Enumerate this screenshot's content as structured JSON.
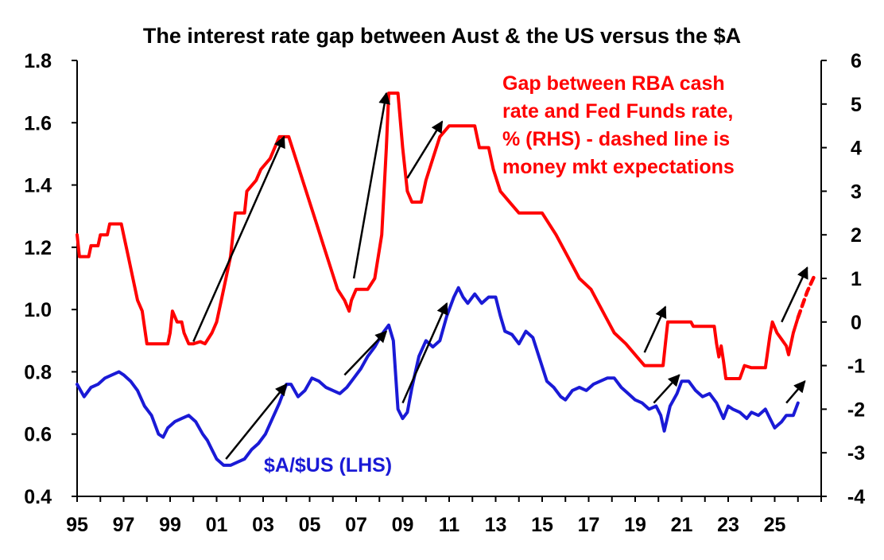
{
  "chart_data": {
    "type": "line",
    "title": "The interest rate gap between Aust & the US versus the $A",
    "x_labels": [
      "95",
      "97",
      "99",
      "01",
      "03",
      "05",
      "07",
      "09",
      "11",
      "13",
      "15",
      "17",
      "19",
      "21",
      "23",
      "25"
    ],
    "x_range": [
      1995,
      2027
    ],
    "y_left": {
      "range": [
        0.4,
        1.8
      ],
      "ticks": [
        "0.4",
        "0.6",
        "0.8",
        "1.0",
        "1.2",
        "1.4",
        "1.6",
        "1.8"
      ]
    },
    "y_right": {
      "range": [
        -4,
        6
      ],
      "ticks": [
        "-4",
        "-3",
        "-2",
        "-1",
        "0",
        "1",
        "2",
        "3",
        "4",
        "5",
        "6"
      ]
    },
    "annotations": {
      "gap_label": [
        "Gap between RBA cash",
        "rate and Fed Funds rate,",
        "% (RHS) - dashed line is",
        "money mkt expectations"
      ],
      "aud_label": "$A/$US (LHS)"
    },
    "series": [
      {
        "name": "Gap between RBA cash rate and Fed Funds rate, % (RHS)",
        "axis": "right",
        "color": "#ff0000",
        "style": "solid",
        "points": [
          [
            1995.0,
            2.0
          ],
          [
            1995.1,
            1.5
          ],
          [
            1995.5,
            1.5
          ],
          [
            1995.6,
            1.75
          ],
          [
            1995.9,
            1.75
          ],
          [
            1996.0,
            2.0
          ],
          [
            1996.3,
            2.0
          ],
          [
            1996.4,
            2.25
          ],
          [
            1996.9,
            2.25
          ],
          [
            1997.0,
            2.0
          ],
          [
            1997.2,
            1.5
          ],
          [
            1997.4,
            1.0
          ],
          [
            1997.6,
            0.5
          ],
          [
            1997.8,
            0.25
          ],
          [
            1998.0,
            -0.5
          ],
          [
            1998.5,
            -0.5
          ],
          [
            1998.9,
            -0.5
          ],
          [
            1999.0,
            -0.25
          ],
          [
            1999.1,
            0.25
          ],
          [
            1999.3,
            0.0
          ],
          [
            1999.5,
            0.0
          ],
          [
            1999.6,
            -0.25
          ],
          [
            1999.8,
            -0.5
          ],
          [
            2000.0,
            -0.5
          ],
          [
            2000.3,
            -0.45
          ],
          [
            2000.5,
            -0.5
          ],
          [
            2000.8,
            -0.25
          ],
          [
            2001.0,
            0.0
          ],
          [
            2001.2,
            0.5
          ],
          [
            2001.4,
            1.0
          ],
          [
            2001.6,
            1.5
          ],
          [
            2001.8,
            2.5
          ],
          [
            2002.2,
            2.5
          ],
          [
            2002.3,
            3.0
          ],
          [
            2002.7,
            3.25
          ],
          [
            2002.9,
            3.5
          ],
          [
            2003.3,
            3.75
          ],
          [
            2003.5,
            4.0
          ],
          [
            2003.7,
            4.25
          ],
          [
            2004.1,
            4.25
          ],
          [
            2004.4,
            3.75
          ],
          [
            2004.7,
            3.25
          ],
          [
            2005.0,
            2.75
          ],
          [
            2005.3,
            2.25
          ],
          [
            2005.6,
            1.75
          ],
          [
            2005.9,
            1.25
          ],
          [
            2006.2,
            0.75
          ],
          [
            2006.5,
            0.5
          ],
          [
            2006.7,
            0.25
          ],
          [
            2006.8,
            0.5
          ],
          [
            2007.0,
            0.75
          ],
          [
            2007.5,
            0.75
          ],
          [
            2007.8,
            1.0
          ],
          [
            2008.1,
            2.0
          ],
          [
            2008.3,
            4.0
          ],
          [
            2008.4,
            5.25
          ],
          [
            2008.8,
            5.25
          ],
          [
            2009.0,
            4.0
          ],
          [
            2009.2,
            3.0
          ],
          [
            2009.4,
            2.75
          ],
          [
            2009.8,
            2.75
          ],
          [
            2010.0,
            3.25
          ],
          [
            2010.3,
            3.75
          ],
          [
            2010.6,
            4.25
          ],
          [
            2011.0,
            4.5
          ],
          [
            2011.5,
            4.5
          ],
          [
            2012.1,
            4.5
          ],
          [
            2012.3,
            4.0
          ],
          [
            2012.7,
            4.0
          ],
          [
            2012.9,
            3.5
          ],
          [
            2013.2,
            3.0
          ],
          [
            2013.6,
            2.75
          ],
          [
            2014.0,
            2.5
          ],
          [
            2014.5,
            2.5
          ],
          [
            2015.0,
            2.5
          ],
          [
            2015.6,
            2.0
          ],
          [
            2016.1,
            1.5
          ],
          [
            2016.6,
            1.0
          ],
          [
            2017.1,
            0.75
          ],
          [
            2017.6,
            0.25
          ],
          [
            2018.1,
            -0.25
          ],
          [
            2018.6,
            -0.5
          ],
          [
            2019.0,
            -0.75
          ],
          [
            2019.4,
            -1.0
          ],
          [
            2019.7,
            -1.0
          ],
          [
            2020.0,
            -1.0
          ],
          [
            2020.2,
            -1.0
          ],
          [
            2020.3,
            -0.5
          ],
          [
            2020.4,
            0.0
          ],
          [
            2021.0,
            0.0
          ],
          [
            2021.4,
            0.0
          ],
          [
            2021.5,
            -0.1
          ],
          [
            2022.0,
            -0.1
          ],
          [
            2022.4,
            -0.1
          ],
          [
            2022.5,
            -0.5
          ],
          [
            2022.6,
            -0.8
          ],
          [
            2022.7,
            -0.55
          ],
          [
            2022.8,
            -0.9
          ],
          [
            2022.9,
            -1.3
          ],
          [
            2023.5,
            -1.3
          ],
          [
            2023.7,
            -1.0
          ],
          [
            2024.0,
            -1.05
          ],
          [
            2024.6,
            -1.05
          ],
          [
            2024.8,
            -0.3
          ],
          [
            2024.9,
            0.0
          ],
          [
            2025.1,
            -0.25
          ],
          [
            2025.3,
            -0.4
          ],
          [
            2025.5,
            -0.55
          ],
          [
            2025.6,
            -0.75
          ],
          [
            2025.8,
            -0.25
          ],
          [
            2026.0,
            0.1
          ]
        ]
      },
      {
        "name": "Money market expectations (RHS)",
        "axis": "right",
        "color": "#ff0000",
        "style": "dashed",
        "points": [
          [
            2026.0,
            0.1
          ],
          [
            2026.4,
            0.7
          ],
          [
            2026.7,
            1.05
          ]
        ]
      },
      {
        "name": "$A/$US (LHS)",
        "axis": "left",
        "color": "#1a1ad6",
        "style": "solid",
        "points": [
          [
            1995.0,
            0.76
          ],
          [
            1995.3,
            0.72
          ],
          [
            1995.6,
            0.75
          ],
          [
            1995.9,
            0.76
          ],
          [
            1996.2,
            0.78
          ],
          [
            1996.5,
            0.79
          ],
          [
            1996.8,
            0.8
          ],
          [
            1997.0,
            0.79
          ],
          [
            1997.3,
            0.77
          ],
          [
            1997.6,
            0.74
          ],
          [
            1997.9,
            0.69
          ],
          [
            1998.2,
            0.66
          ],
          [
            1998.5,
            0.6
          ],
          [
            1998.7,
            0.59
          ],
          [
            1998.9,
            0.62
          ],
          [
            1999.2,
            0.64
          ],
          [
            1999.5,
            0.65
          ],
          [
            1999.8,
            0.66
          ],
          [
            2000.1,
            0.64
          ],
          [
            2000.4,
            0.6
          ],
          [
            2000.6,
            0.58
          ],
          [
            2000.8,
            0.55
          ],
          [
            2001.0,
            0.52
          ],
          [
            2001.3,
            0.5
          ],
          [
            2001.6,
            0.5
          ],
          [
            2001.9,
            0.51
          ],
          [
            2002.2,
            0.52
          ],
          [
            2002.5,
            0.55
          ],
          [
            2002.8,
            0.57
          ],
          [
            2003.1,
            0.6
          ],
          [
            2003.4,
            0.65
          ],
          [
            2003.7,
            0.7
          ],
          [
            2004.0,
            0.76
          ],
          [
            2004.2,
            0.76
          ],
          [
            2004.5,
            0.72
          ],
          [
            2004.8,
            0.74
          ],
          [
            2005.1,
            0.78
          ],
          [
            2005.4,
            0.77
          ],
          [
            2005.7,
            0.75
          ],
          [
            2006.0,
            0.74
          ],
          [
            2006.3,
            0.73
          ],
          [
            2006.6,
            0.75
          ],
          [
            2006.9,
            0.78
          ],
          [
            2007.2,
            0.81
          ],
          [
            2007.5,
            0.85
          ],
          [
            2007.8,
            0.88
          ],
          [
            2008.1,
            0.92
          ],
          [
            2008.4,
            0.95
          ],
          [
            2008.6,
            0.9
          ],
          [
            2008.8,
            0.68
          ],
          [
            2009.0,
            0.65
          ],
          [
            2009.2,
            0.67
          ],
          [
            2009.4,
            0.75
          ],
          [
            2009.7,
            0.85
          ],
          [
            2010.0,
            0.9
          ],
          [
            2010.3,
            0.88
          ],
          [
            2010.6,
            0.9
          ],
          [
            2010.9,
            0.98
          ],
          [
            2011.2,
            1.04
          ],
          [
            2011.4,
            1.07
          ],
          [
            2011.6,
            1.04
          ],
          [
            2011.8,
            1.02
          ],
          [
            2012.1,
            1.05
          ],
          [
            2012.4,
            1.02
          ],
          [
            2012.7,
            1.04
          ],
          [
            2013.0,
            1.04
          ],
          [
            2013.2,
            0.98
          ],
          [
            2013.4,
            0.93
          ],
          [
            2013.7,
            0.92
          ],
          [
            2014.0,
            0.89
          ],
          [
            2014.3,
            0.93
          ],
          [
            2014.6,
            0.91
          ],
          [
            2014.9,
            0.84
          ],
          [
            2015.2,
            0.77
          ],
          [
            2015.5,
            0.75
          ],
          [
            2015.8,
            0.72
          ],
          [
            2016.0,
            0.71
          ],
          [
            2016.3,
            0.74
          ],
          [
            2016.6,
            0.75
          ],
          [
            2016.9,
            0.74
          ],
          [
            2017.2,
            0.76
          ],
          [
            2017.5,
            0.77
          ],
          [
            2017.8,
            0.78
          ],
          [
            2018.1,
            0.78
          ],
          [
            2018.4,
            0.75
          ],
          [
            2018.7,
            0.73
          ],
          [
            2019.0,
            0.71
          ],
          [
            2019.3,
            0.7
          ],
          [
            2019.6,
            0.68
          ],
          [
            2019.9,
            0.69
          ],
          [
            2020.1,
            0.66
          ],
          [
            2020.25,
            0.61
          ],
          [
            2020.5,
            0.69
          ],
          [
            2020.8,
            0.73
          ],
          [
            2021.0,
            0.77
          ],
          [
            2021.3,
            0.77
          ],
          [
            2021.6,
            0.74
          ],
          [
            2021.9,
            0.72
          ],
          [
            2022.2,
            0.73
          ],
          [
            2022.5,
            0.7
          ],
          [
            2022.8,
            0.65
          ],
          [
            2023.0,
            0.69
          ],
          [
            2023.2,
            0.68
          ],
          [
            2023.5,
            0.67
          ],
          [
            2023.8,
            0.65
          ],
          [
            2024.0,
            0.67
          ],
          [
            2024.3,
            0.66
          ],
          [
            2024.6,
            0.68
          ],
          [
            2024.8,
            0.65
          ],
          [
            2025.0,
            0.62
          ],
          [
            2025.3,
            0.64
          ],
          [
            2025.5,
            0.66
          ],
          [
            2025.8,
            0.66
          ],
          [
            2026.0,
            0.7
          ]
        ]
      }
    ],
    "arrows": [
      {
        "axis": "right",
        "from": [
          2000.0,
          -0.45
        ],
        "to": [
          2003.9,
          4.25
        ]
      },
      {
        "axis": "right",
        "from": [
          2006.9,
          1.0
        ],
        "to": [
          2008.3,
          5.25
        ]
      },
      {
        "axis": "right",
        "from": [
          2009.2,
          3.3
        ],
        "to": [
          2010.7,
          4.6
        ]
      },
      {
        "axis": "right",
        "from": [
          2019.4,
          -0.7
        ],
        "to": [
          2020.3,
          0.35
        ]
      },
      {
        "axis": "right",
        "from": [
          2025.3,
          0.0
        ],
        "to": [
          2026.4,
          1.25
        ]
      },
      {
        "axis": "left",
        "from": [
          2001.4,
          0.52
        ],
        "to": [
          2004.0,
          0.76
        ]
      },
      {
        "axis": "left",
        "from": [
          2006.5,
          0.79
        ],
        "to": [
          2008.3,
          0.93
        ]
      },
      {
        "axis": "left",
        "from": [
          2009.0,
          0.7
        ],
        "to": [
          2010.9,
          1.02
        ]
      },
      {
        "axis": "left",
        "from": [
          2019.8,
          0.7
        ],
        "to": [
          2020.9,
          0.79
        ]
      },
      {
        "axis": "left",
        "from": [
          2025.5,
          0.7
        ],
        "to": [
          2026.3,
          0.77
        ]
      }
    ]
  }
}
